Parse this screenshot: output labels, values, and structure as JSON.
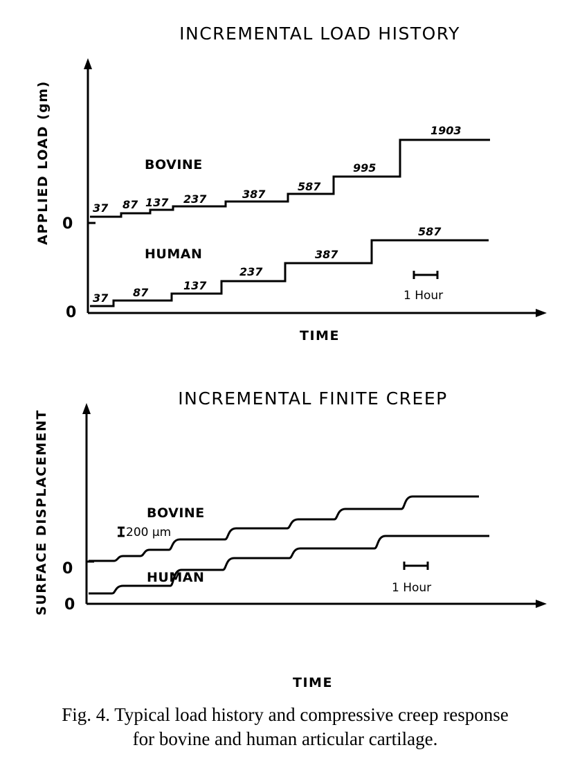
{
  "chart_data": [
    {
      "type": "line",
      "title": "INCREMENTAL LOAD HISTORY",
      "xlabel": "TIME",
      "ylabel": "APPLIED LOAD (gm)",
      "zero_labels": [
        "0",
        "0"
      ],
      "time_scale_label": "1 Hour",
      "series": [
        {
          "name": "BOVINE",
          "step_loads": [
            37,
            87,
            137,
            237,
            387,
            587,
            995,
            1903
          ],
          "step_labels": [
            "37",
            "87",
            "137",
            "237",
            "387",
            "587",
            "995",
            "1903"
          ]
        },
        {
          "name": "HUMAN",
          "step_loads": [
            37,
            87,
            137,
            237,
            387,
            587
          ],
          "step_labels": [
            "37",
            "87",
            "137",
            "237",
            "387",
            "587"
          ]
        }
      ]
    },
    {
      "type": "line",
      "title": "INCREMENTAL FINITE CREEP",
      "xlabel": "TIME",
      "ylabel": "SURFACE DISPLACEMENT",
      "zero_labels": [
        "0",
        "0"
      ],
      "displacement_scale_label": "200 μm",
      "time_scale_label": "1 Hour",
      "series": [
        {
          "name": "BOVINE",
          "steps": 8
        },
        {
          "name": "HUMAN",
          "steps": 6
        }
      ]
    }
  ],
  "caption": {
    "line1": "Fig. 4.  Typical load history and compressive creep response",
    "line2": "for bovine and human articular cartilage."
  }
}
